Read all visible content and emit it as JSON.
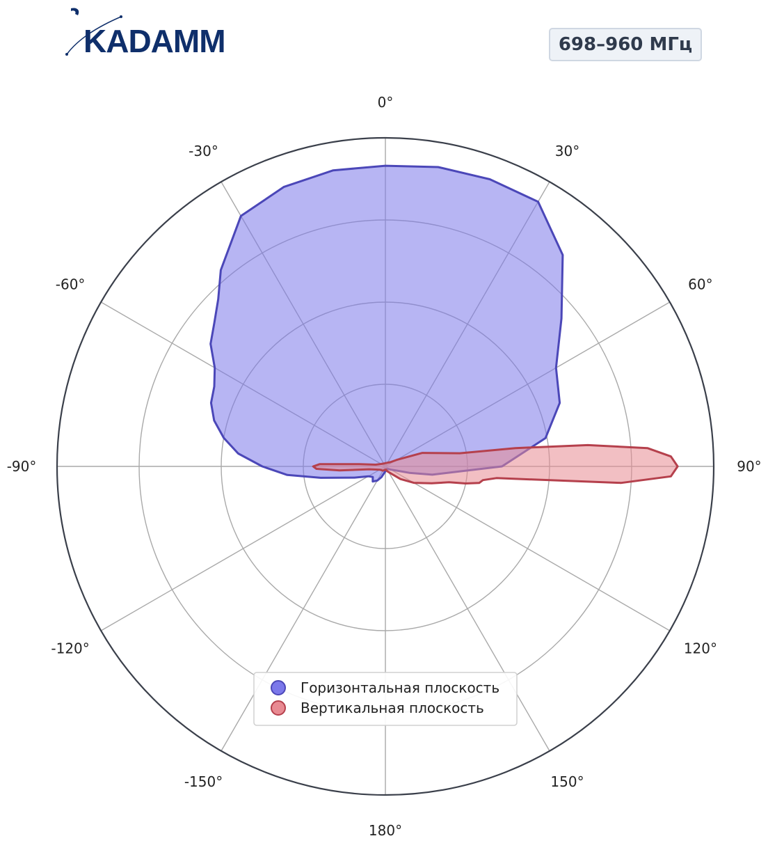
{
  "logo": {
    "text": "KADAMM",
    "color": "#0f2f6b"
  },
  "badge": {
    "text": "698–960 МГц"
  },
  "chart_data": {
    "type": "polar",
    "theta_zero": "top",
    "theta_direction": "clockwise",
    "r_range": [
      0,
      1
    ],
    "r_grid": [
      0.25,
      0.5,
      0.75
    ],
    "grid": true,
    "theta_ticks": [
      "0°",
      "30°",
      "60°",
      "90°",
      "120°",
      "150°",
      "180°",
      "-150°",
      "-120°",
      "-90°",
      "-60°",
      "-30°"
    ],
    "legend_position": "bottom-center",
    "series": [
      {
        "name": "Горизонтальная плоскость",
        "color": "#4b47b8",
        "fill": "#7b78ea",
        "theta": [
          0,
          10,
          20,
          30,
          40,
          50,
          60,
          70,
          80,
          90,
          100,
          105,
          110,
          120,
          140,
          160,
          180,
          -170,
          -160,
          -150,
          -140,
          -130,
          -120,
          -110,
          -100,
          -95,
          -90,
          -85,
          -80,
          -75,
          -70,
          -65,
          -60,
          -55,
          -50,
          -45,
          -40,
          -30,
          -20,
          -10
        ],
        "r": [
          0.915,
          0.925,
          0.93,
          0.93,
          0.84,
          0.7,
          0.6,
          0.565,
          0.495,
          0.355,
          0.145,
          0.075,
          0.038,
          0.02,
          0.01,
          0.01,
          0.015,
          0.02,
          0.035,
          0.05,
          0.06,
          0.05,
          0.06,
          0.1,
          0.2,
          0.3,
          0.375,
          0.45,
          0.5,
          0.54,
          0.565,
          0.575,
          0.6,
          0.65,
          0.68,
          0.72,
          0.78,
          0.88,
          0.905,
          0.915
        ]
      },
      {
        "name": "Вертикальная плоскость",
        "color": "#b5404c",
        "fill": "#e88a92",
        "theta": [
          0,
          50,
          60,
          70,
          80,
          82,
          84,
          86,
          88,
          90,
          92,
          94,
          96,
          98,
          100,
          102,
          104,
          110,
          120,
          130,
          140,
          150,
          160,
          170,
          180,
          -150,
          -120,
          -100,
          -95,
          -92,
          -90,
          -88,
          -85,
          -80,
          -60,
          -30
        ],
        "r": [
          0.01,
          0.02,
          0.04,
          0.12,
          0.23,
          0.4,
          0.62,
          0.8,
          0.87,
          0.89,
          0.87,
          0.72,
          0.34,
          0.3,
          0.29,
          0.25,
          0.2,
          0.15,
          0.1,
          0.06,
          0.03,
          0.02,
          0.015,
          0.01,
          0.01,
          0.015,
          0.02,
          0.05,
          0.14,
          0.21,
          0.22,
          0.2,
          0.08,
          0.03,
          0.015,
          0.01
        ]
      }
    ]
  }
}
